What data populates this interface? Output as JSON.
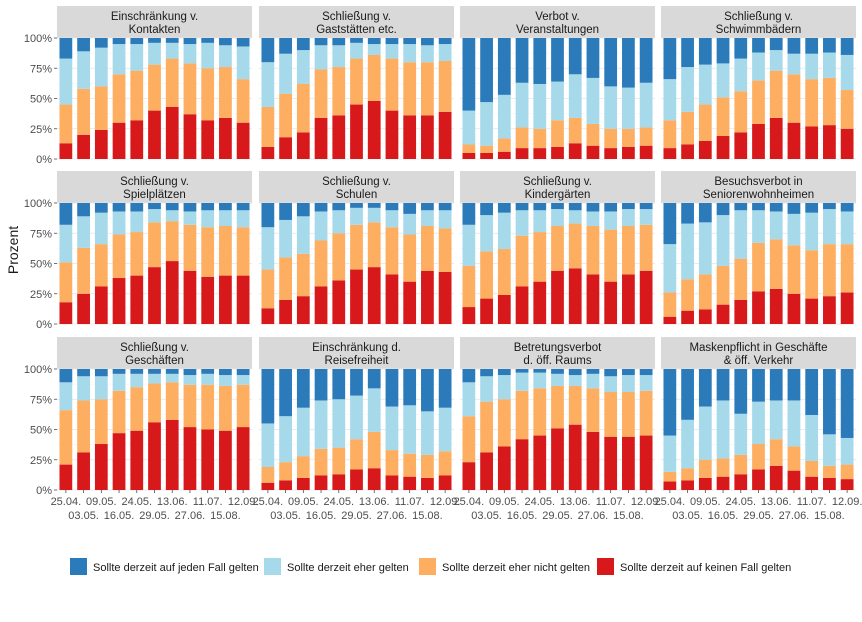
{
  "chart_data": {
    "type": "bar",
    "stacked": true,
    "ylabel": "Prozent",
    "ylim": [
      0,
      100
    ],
    "yticks": [
      "0%",
      "25%",
      "50%",
      "75%",
      "100%"
    ],
    "grid": true,
    "legend_position": "bottom",
    "dates": [
      "25.04.",
      "03.05.",
      "09.05.",
      "16.05.",
      "24.05.",
      "29.05.",
      "13.06.",
      "27.06.",
      "11.07.",
      "15.08.",
      "12.09."
    ],
    "series": [
      {
        "name": "Sollte derzeit auf jeden Fall gelten",
        "color": "#2b7bba"
      },
      {
        "name": "Sollte derzeit eher gelten",
        "color": "#a6d9ea"
      },
      {
        "name": "Sollte derzeit eher nicht gelten",
        "color": "#fdae61"
      },
      {
        "name": "Sollte derzeit auf keinen Fall gelten",
        "color": "#d7191c"
      }
    ],
    "panels": [
      {
        "title": [
          "Einschränkung v.",
          "Kontakten"
        ],
        "keinen": [
          13,
          20,
          24,
          30,
          32,
          40,
          43,
          37,
          32,
          34,
          30
        ],
        "eher_nicht": [
          32,
          38,
          36,
          40,
          41,
          38,
          40,
          42,
          43,
          42,
          36
        ],
        "eher": [
          38,
          31,
          32,
          25,
          22,
          18,
          13,
          16,
          21,
          18,
          27
        ]
      },
      {
        "title": [
          "Schließung v.",
          "Gaststätten etc."
        ],
        "keinen": [
          10,
          18,
          22,
          34,
          36,
          45,
          48,
          40,
          36,
          36,
          39
        ],
        "eher_nicht": [
          33,
          36,
          40,
          40,
          40,
          38,
          38,
          43,
          44,
          44,
          42
        ],
        "eher": [
          37,
          33,
          28,
          20,
          18,
          13,
          9,
          12,
          15,
          14,
          14
        ]
      },
      {
        "title": [
          "Verbot v.",
          "Veranstaltungen"
        ],
        "keinen": [
          5,
          5,
          6,
          9,
          9,
          10,
          13,
          11,
          9,
          10,
          11
        ],
        "eher_nicht": [
          7,
          6,
          11,
          17,
          16,
          22,
          21,
          18,
          16,
          15,
          15
        ],
        "eher": [
          28,
          36,
          36,
          37,
          37,
          32,
          36,
          38,
          35,
          34,
          37
        ]
      },
      {
        "title": [
          "Schließung v.",
          "Schwimmbädern"
        ],
        "keinen": [
          9,
          12,
          15,
          19,
          22,
          29,
          34,
          30,
          27,
          28,
          25
        ],
        "eher_nicht": [
          23,
          27,
          30,
          32,
          34,
          36,
          39,
          40,
          39,
          39,
          32
        ],
        "eher": [
          34,
          37,
          33,
          28,
          27,
          23,
          17,
          17,
          21,
          21,
          29
        ]
      },
      {
        "title": [
          "Schließung v.",
          "Spielplätzen"
        ],
        "keinen": [
          18,
          25,
          31,
          38,
          40,
          47,
          52,
          44,
          39,
          40,
          40
        ],
        "eher_nicht": [
          33,
          38,
          35,
          36,
          36,
          37,
          33,
          38,
          41,
          41,
          40
        ],
        "eher": [
          31,
          26,
          26,
          19,
          17,
          11,
          9,
          11,
          14,
          13,
          14
        ]
      },
      {
        "title": [
          "Schließung v.",
          "Schulen"
        ],
        "keinen": [
          13,
          20,
          23,
          31,
          36,
          45,
          47,
          41,
          35,
          44,
          43
        ],
        "eher_nicht": [
          32,
          35,
          35,
          38,
          39,
          37,
          37,
          39,
          39,
          37,
          36
        ],
        "eher": [
          35,
          31,
          31,
          24,
          19,
          14,
          12,
          14,
          17,
          13,
          15
        ]
      },
      {
        "title": [
          "Schließung v.",
          "Kindergärten"
        ],
        "keinen": [
          14,
          21,
          24,
          31,
          35,
          44,
          46,
          41,
          35,
          41,
          44
        ],
        "eher_nicht": [
          34,
          39,
          38,
          42,
          41,
          37,
          37,
          40,
          43,
          40,
          38
        ],
        "eher": [
          34,
          30,
          30,
          21,
          18,
          14,
          11,
          12,
          15,
          14,
          13
        ]
      },
      {
        "title": [
          "Besuchsverbot in",
          "Seniorenwohnheimen"
        ],
        "keinen": [
          6,
          11,
          12,
          16,
          20,
          27,
          29,
          25,
          21,
          23,
          26
        ],
        "eher_nicht": [
          20,
          26,
          29,
          32,
          34,
          40,
          41,
          40,
          40,
          43,
          40
        ],
        "eher": [
          40,
          46,
          43,
          42,
          40,
          27,
          23,
          26,
          31,
          29,
          27
        ]
      },
      {
        "title": [
          "Schließung v.",
          "Geschäften"
        ],
        "keinen": [
          21,
          31,
          38,
          47,
          49,
          56,
          58,
          52,
          50,
          49,
          52
        ],
        "eher_nicht": [
          45,
          43,
          37,
          35,
          36,
          32,
          31,
          35,
          37,
          37,
          35
        ],
        "eher": [
          23,
          20,
          19,
          14,
          11,
          8,
          7,
          8,
          9,
          9,
          8
        ]
      },
      {
        "title": [
          "Einschränkung d.",
          "Reisefreiheit"
        ],
        "keinen": [
          6,
          8,
          10,
          12,
          13,
          17,
          18,
          12,
          11,
          10,
          12
        ],
        "eher_nicht": [
          13,
          15,
          18,
          22,
          22,
          25,
          30,
          21,
          19,
          19,
          20
        ],
        "eher": [
          36,
          38,
          40,
          40,
          40,
          36,
          36,
          36,
          40,
          36,
          36
        ]
      },
      {
        "title": [
          "Betretungsverbot",
          "d. öff. Raums"
        ],
        "keinen": [
          23,
          31,
          36,
          42,
          45,
          51,
          54,
          48,
          44,
          44,
          45
        ],
        "eher_nicht": [
          38,
          42,
          39,
          40,
          39,
          35,
          32,
          36,
          37,
          37,
          37
        ],
        "eher": [
          28,
          21,
          20,
          15,
          13,
          10,
          9,
          12,
          13,
          14,
          13
        ]
      },
      {
        "title": [
          "Maskenpflicht in Geschäfte",
          "& öff. Verkehr"
        ],
        "keinen": [
          7,
          8,
          10,
          11,
          13,
          17,
          20,
          16,
          11,
          10,
          9
        ],
        "eher_nicht": [
          8,
          10,
          15,
          15,
          16,
          21,
          22,
          20,
          13,
          10,
          12
        ],
        "eher": [
          30,
          40,
          44,
          48,
          34,
          35,
          32,
          38,
          38,
          26,
          22
        ]
      }
    ]
  }
}
